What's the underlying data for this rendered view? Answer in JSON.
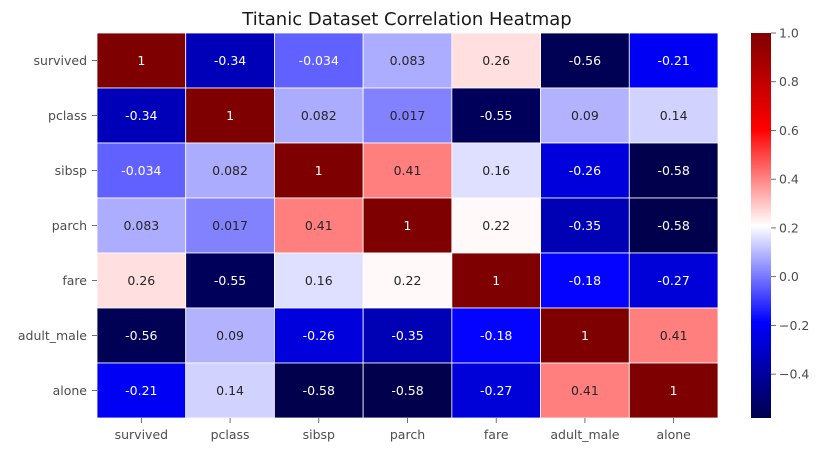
{
  "chart_data": {
    "type": "heatmap",
    "title": "Titanic Dataset Correlation Heatmap",
    "xlabel": "",
    "ylabel": "",
    "colormap": "seismic",
    "grid": true,
    "legend": "colorbar-right",
    "variables": [
      "survived",
      "pclass",
      "sibsp",
      "parch",
      "fare",
      "adult_male",
      "alone"
    ],
    "values": [
      [
        1,
        -0.34,
        -0.034,
        0.083,
        0.26,
        -0.56,
        -0.21
      ],
      [
        -0.34,
        1,
        0.082,
        0.017,
        -0.55,
        0.09,
        0.14
      ],
      [
        -0.034,
        0.082,
        1,
        0.41,
        0.16,
        -0.26,
        -0.58
      ],
      [
        0.083,
        0.017,
        0.41,
        1,
        0.22,
        -0.35,
        -0.58
      ],
      [
        0.26,
        -0.55,
        0.16,
        0.22,
        1,
        -0.18,
        -0.27
      ],
      [
        -0.56,
        0.09,
        -0.26,
        -0.35,
        -0.18,
        1,
        0.41
      ],
      [
        -0.21,
        0.14,
        -0.58,
        -0.58,
        -0.27,
        0.41,
        1
      ]
    ],
    "labels": [
      [
        "1",
        "-0.34",
        "-0.034",
        "0.083",
        "0.26",
        "-0.56",
        "-0.21"
      ],
      [
        "-0.34",
        "1",
        "0.082",
        "0.017",
        "-0.55",
        "0.09",
        "0.14"
      ],
      [
        "-0.034",
        "0.082",
        "1",
        "0.41",
        "0.16",
        "-0.26",
        "-0.58"
      ],
      [
        "0.083",
        "0.017",
        "0.41",
        "1",
        "0.22",
        "-0.35",
        "-0.58"
      ],
      [
        "0.26",
        "-0.55",
        "0.16",
        "0.22",
        "1",
        "-0.18",
        "-0.27"
      ],
      [
        "-0.56",
        "0.09",
        "-0.26",
        "-0.35",
        "-0.18",
        "1",
        "0.41"
      ],
      [
        "-0.21",
        "0.14",
        "-0.58",
        "-0.58",
        "-0.27",
        "0.41",
        "1"
      ]
    ],
    "colorbar": {
      "vmin": -0.58,
      "vmax": 1,
      "ticks": [
        -0.4,
        -0.2,
        0.0,
        0.2,
        0.4,
        0.6,
        0.8,
        1.0
      ],
      "tick_labels": [
        "−0.4",
        "−0.2",
        "0.0",
        "0.2",
        "0.4",
        "0.6",
        "0.8",
        "1.0"
      ]
    },
    "colors": {
      "dark_blue": "#00004c",
      "blue": "#0000ff",
      "white": "#ffffff",
      "red": "#ff0000",
      "dark_red": "#800000"
    }
  }
}
